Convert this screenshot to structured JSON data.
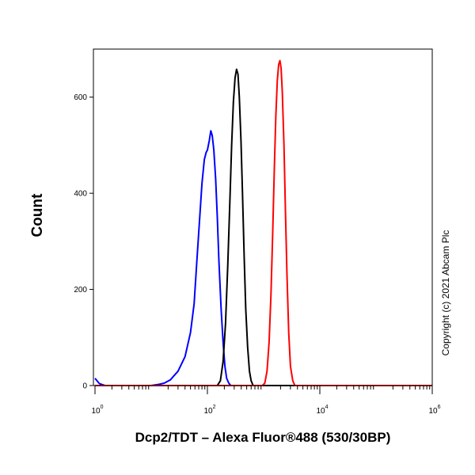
{
  "chart_data": {
    "type": "line",
    "title": "",
    "xlabel": "Dcp2/TDT – Alexa Fluor®488 (530/30BP)",
    "ylabel": "Count",
    "x_scale": "log",
    "xlim": [
      1,
      1000000
    ],
    "ylim": [
      0,
      700
    ],
    "x_ticks": [
      {
        "value": 1,
        "base": "10",
        "exp": "0"
      },
      {
        "value": 100,
        "base": "10",
        "exp": "2"
      },
      {
        "value": 10000,
        "base": "10",
        "exp": "4"
      },
      {
        "value": 1000000,
        "base": "10",
        "exp": "6"
      }
    ],
    "y_ticks": [
      {
        "value": 0,
        "label": "0"
      },
      {
        "value": 200,
        "label": "200"
      },
      {
        "value": 400,
        "label": "400"
      },
      {
        "value": 600,
        "label": "600"
      }
    ],
    "series": [
      {
        "color": "#0000ff",
        "points": [
          [
            1,
            15
          ],
          [
            1.2,
            4
          ],
          [
            1.5,
            0
          ],
          [
            10,
            0
          ],
          [
            13,
            2
          ],
          [
            17,
            5
          ],
          [
            22,
            12
          ],
          [
            30,
            30
          ],
          [
            40,
            60
          ],
          [
            50,
            110
          ],
          [
            58,
            170
          ],
          [
            65,
            260
          ],
          [
            72,
            340
          ],
          [
            80,
            420
          ],
          [
            88,
            470
          ],
          [
            95,
            485
          ],
          [
            100,
            490
          ],
          [
            108,
            510
          ],
          [
            115,
            530
          ],
          [
            122,
            520
          ],
          [
            130,
            490
          ],
          [
            140,
            430
          ],
          [
            150,
            350
          ],
          [
            160,
            260
          ],
          [
            175,
            160
          ],
          [
            190,
            90
          ],
          [
            205,
            40
          ],
          [
            220,
            15
          ],
          [
            240,
            5
          ],
          [
            260,
            0
          ],
          [
            1000000,
            0
          ]
        ]
      },
      {
        "color": "#000000",
        "points": [
          [
            1,
            0
          ],
          [
            150,
            0
          ],
          [
            170,
            10
          ],
          [
            190,
            50
          ],
          [
            210,
            130
          ],
          [
            230,
            250
          ],
          [
            250,
            380
          ],
          [
            270,
            500
          ],
          [
            290,
            590
          ],
          [
            310,
            640
          ],
          [
            330,
            658
          ],
          [
            350,
            648
          ],
          [
            370,
            600
          ],
          [
            395,
            510
          ],
          [
            420,
            400
          ],
          [
            450,
            270
          ],
          [
            480,
            160
          ],
          [
            520,
            80
          ],
          [
            560,
            30
          ],
          [
            600,
            10
          ],
          [
            650,
            0
          ],
          [
            1000000,
            0
          ]
        ]
      },
      {
        "color": "#ff0000",
        "points": [
          [
            1,
            0
          ],
          [
            950,
            0
          ],
          [
            1050,
            5
          ],
          [
            1150,
            30
          ],
          [
            1250,
            90
          ],
          [
            1350,
            190
          ],
          [
            1450,
            320
          ],
          [
            1550,
            450
          ],
          [
            1650,
            560
          ],
          [
            1750,
            635
          ],
          [
            1850,
            668
          ],
          [
            1950,
            676
          ],
          [
            2050,
            660
          ],
          [
            2150,
            610
          ],
          [
            2300,
            500
          ],
          [
            2450,
            360
          ],
          [
            2600,
            230
          ],
          [
            2800,
            110
          ],
          [
            3000,
            40
          ],
          [
            3300,
            10
          ],
          [
            3600,
            0
          ],
          [
            1000000,
            0
          ]
        ]
      }
    ],
    "grid": false,
    "legend": "none"
  },
  "watermark": "Copyright (c) 2021 Abcam Plc"
}
